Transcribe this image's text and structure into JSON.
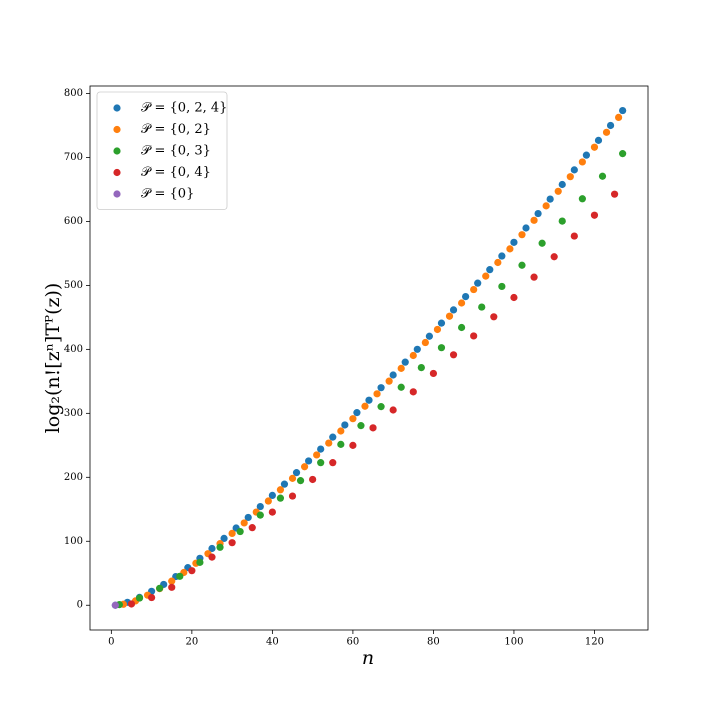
{
  "chart_data": {
    "type": "scatter",
    "xlabel": "n",
    "ylabel": "log₂(n![zⁿ]Tᴾ(z))",
    "xlim": [
      -5.3,
      133.3
    ],
    "ylim": [
      -38.7,
      811.7
    ],
    "xticks": [
      0,
      20,
      40,
      60,
      80,
      100,
      120
    ],
    "yticks": [
      0,
      100,
      200,
      300,
      400,
      500,
      600,
      700,
      800
    ],
    "legend": "upper left",
    "series": [
      {
        "name": "𝒫 = {0, 2, 4}",
        "color": "#1f77b4",
        "x": [
          1,
          4,
          7,
          10,
          13,
          16,
          19,
          22,
          25,
          28,
          31,
          34,
          37,
          40,
          43,
          46,
          49,
          52,
          55,
          58,
          61,
          64,
          67,
          70,
          73,
          76,
          79,
          82,
          85,
          88,
          91,
          94,
          97,
          100,
          103,
          106,
          109,
          112,
          115,
          118,
          121,
          124,
          127
        ],
        "values": [
          0,
          4.6,
          12.3,
          21.8,
          32.5,
          44.8,
          58.8,
          73.4,
          88.7,
          104.5,
          120.7,
          137.3,
          154.3,
          171.7,
          189.3,
          207.3,
          225.6,
          244.1,
          262.8,
          281.8,
          301.1,
          320.5,
          340.1,
          359.9,
          380.0,
          400.1,
          420.5,
          441.0,
          461.7,
          482.5,
          503.5,
          524.6,
          545.9,
          567.3,
          589.7,
          612.3,
          634.9,
          657.7,
          680.6,
          703.6,
          726.7,
          750.0,
          773.3
        ]
      },
      {
        "name": "𝒫 = {0, 2}",
        "color": "#ff7f0e",
        "x": [
          3,
          6,
          9,
          12,
          15,
          18,
          21,
          24,
          27,
          30,
          33,
          36,
          39,
          42,
          45,
          48,
          51,
          54,
          57,
          60,
          63,
          66,
          69,
          72,
          75,
          78,
          81,
          84,
          87,
          90,
          93,
          96,
          99,
          102,
          105,
          108,
          111,
          114,
          117,
          120,
          123,
          126
        ],
        "values": [
          1.5,
          6.8,
          15.7,
          26,
          37.7,
          51.2,
          65.6,
          80.6,
          96.3,
          112.3,
          128.7,
          145.7,
          162.9,
          180.5,
          198.3,
          216.5,
          235,
          253.5,
          272.4,
          291.6,
          311.1,
          330.5,
          350.3,
          370.3,
          390.4,
          410.7,
          431.1,
          451.8,
          472.5,
          493.5,
          514.5,
          535.8,
          557.1,
          579.3,
          601.7,
          624.3,
          647.1,
          669.9,
          693,
          716,
          739.3,
          762.6
        ]
      },
      {
        "name": "𝒫 = {0, 3}",
        "color": "#2ca02c",
        "x": [
          2,
          7,
          12,
          17,
          22,
          27,
          32,
          37,
          42,
          47,
          52,
          57,
          62,
          67,
          72,
          77,
          82,
          87,
          92,
          97,
          102,
          107,
          112,
          117,
          122,
          127
        ],
        "values": [
          1,
          11.2,
          26.5,
          45.2,
          67,
          90.6,
          115.2,
          140.9,
          167.4,
          194.8,
          222.9,
          251.5,
          280.8,
          310.5,
          340.8,
          371.5,
          402.6,
          434.2,
          466.1,
          498.4,
          531.5,
          565.9,
          600.5,
          635.4,
          670.6,
          706
        ]
      },
      {
        "name": "𝒫 = {0, 4}",
        "color": "#d62728",
        "x": [
          5,
          10,
          15,
          20,
          25,
          30,
          35,
          40,
          45,
          50,
          55,
          60,
          65,
          70,
          75,
          80,
          85,
          90,
          95,
          100,
          105,
          110,
          115,
          120,
          125
        ],
        "values": [
          2,
          12,
          28,
          54,
          75.2,
          97.8,
          121.3,
          145.6,
          170.7,
          196.6,
          222.9,
          249.9,
          277.3,
          305.2,
          333.6,
          362.4,
          391.5,
          421,
          450.9,
          481.1,
          512.9,
          544.8,
          577.1,
          609.7,
          642.6
        ]
      },
      {
        "name": "𝒫 = {0}",
        "color": "#9467bd",
        "x": [
          1
        ],
        "values": [
          0
        ]
      }
    ]
  }
}
